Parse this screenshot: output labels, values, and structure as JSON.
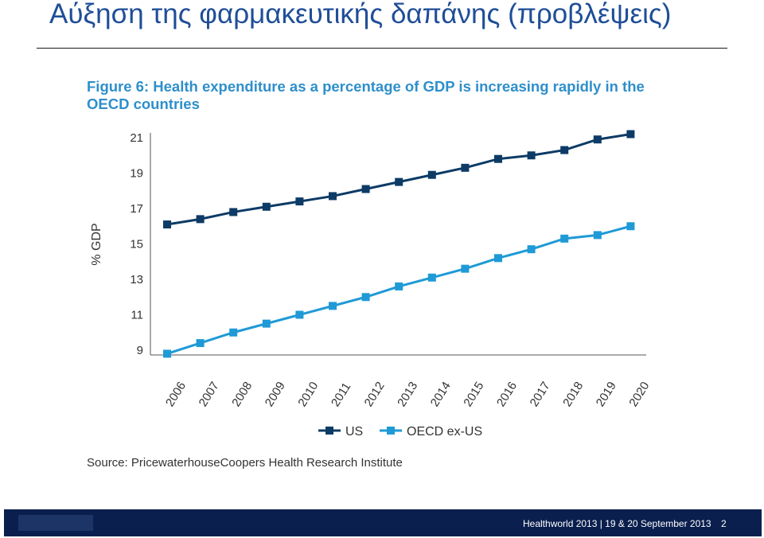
{
  "slide": {
    "title": "Αύξηση της φαρμακευτικής δαπάνης (προβλέψεις)",
    "figure_caption": "Figure 6: Health expenditure as a percentage of GDP is increasing rapidly in the OECD countries",
    "source": "Source: PricewaterhouseCoopers Health Research Institute"
  },
  "footer": {
    "text": "Healthworld 2013 | 19 & 20 September 2013",
    "page": "2"
  },
  "chart_data": {
    "type": "line",
    "title": "Figure 6: Health expenditure as a percentage of GDP is increasing rapidly in the OECD countries",
    "ylabel": "% GDP",
    "xlabel": "",
    "x": [
      "2006",
      "2007",
      "2008",
      "2009",
      "2010",
      "2011",
      "2012",
      "2013",
      "2014",
      "2015",
      "2016",
      "2017",
      "2018",
      "2019",
      "2020"
    ],
    "y_ticks": [
      "9",
      "11",
      "13",
      "15",
      "17",
      "19",
      "21"
    ],
    "ylim": [
      9,
      21
    ],
    "grid": false,
    "legend_position": "bottom",
    "series": [
      {
        "name": "US",
        "color": "#0d3b66",
        "values": [
          16.1,
          16.4,
          16.8,
          17.1,
          17.4,
          17.7,
          18.1,
          18.5,
          18.9,
          19.3,
          19.8,
          20.0,
          20.3,
          20.9,
          21.2
        ]
      },
      {
        "name": "OECD ex-US",
        "color": "#1f9ad6",
        "values": [
          8.8,
          9.4,
          10.0,
          10.5,
          11.0,
          11.5,
          12.0,
          12.6,
          13.1,
          13.6,
          14.2,
          14.7,
          15.3,
          15.5,
          16.0
        ]
      }
    ]
  }
}
